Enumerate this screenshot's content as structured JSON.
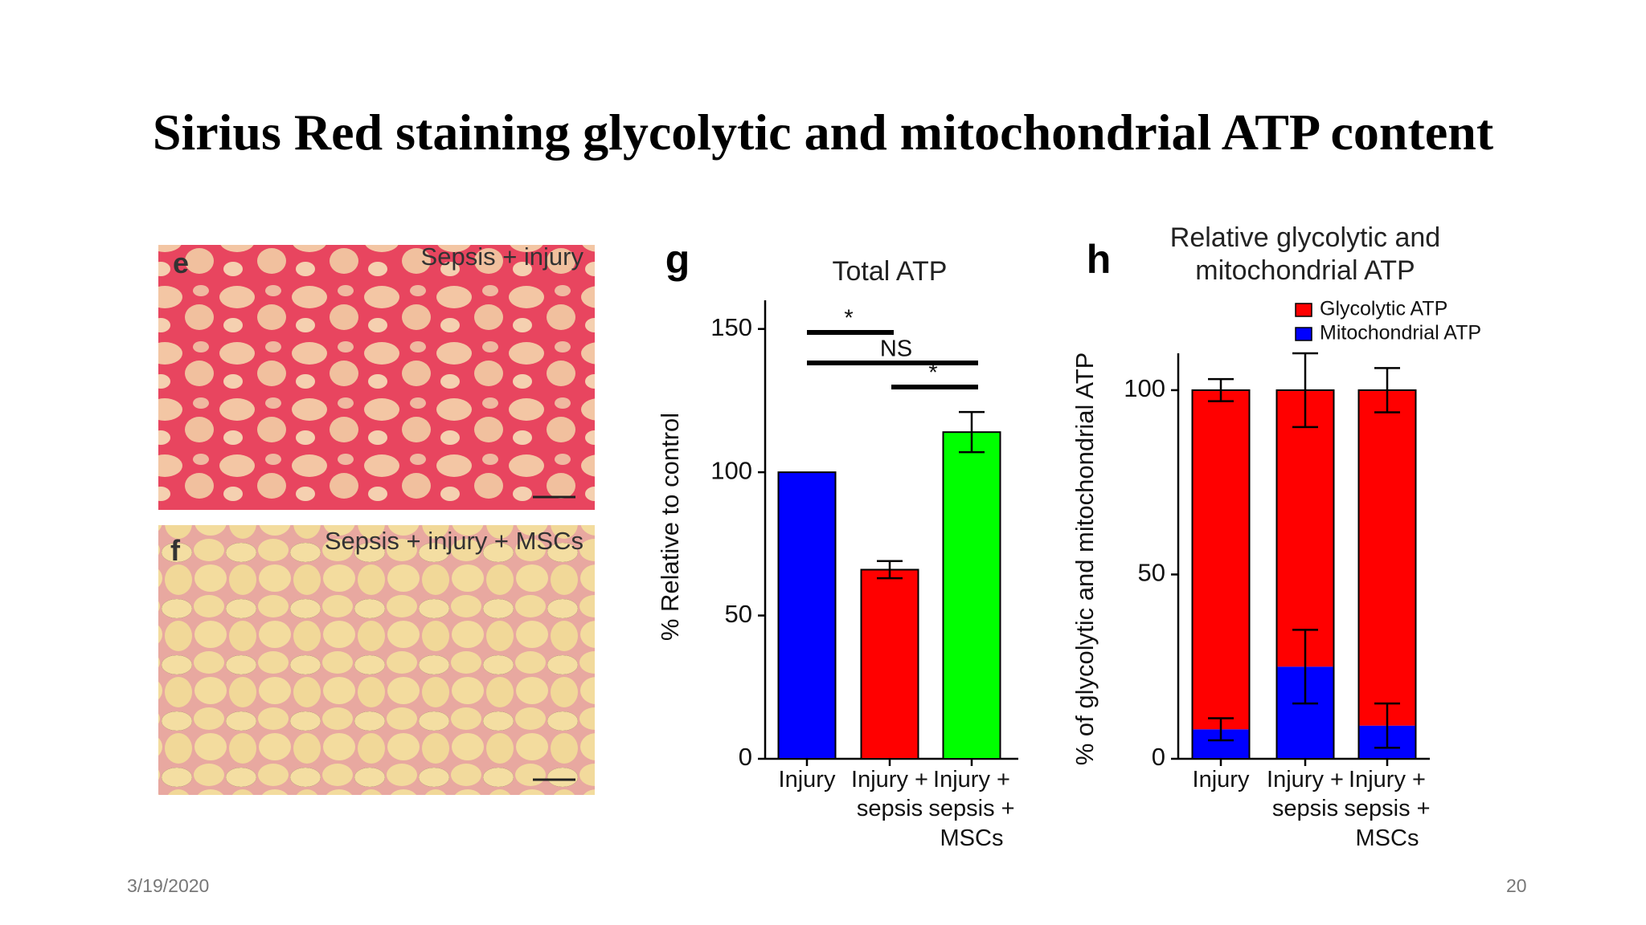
{
  "title": "Sirius Red staining glycolytic and mitochondrial ATP content",
  "images": [
    {
      "panel": "e",
      "caption": "Sepsis + injury"
    },
    {
      "panel": "f",
      "caption": "Sepsis + injury + MSCs"
    }
  ],
  "chart_data": [
    {
      "type": "bar",
      "panel": "g",
      "title": "Total ATP",
      "ylabel": "% Relative to control",
      "categories": [
        "Injury",
        "Injury + sepsis",
        "Injury + sepsis + MSCs"
      ],
      "values": [
        100,
        66,
        114
      ],
      "errors": [
        0,
        3,
        7
      ],
      "colors": [
        "#0000ff",
        "#ff0000",
        "#00ff00"
      ],
      "ylim": [
        0,
        160
      ],
      "yticks": [
        0,
        50,
        100,
        150
      ],
      "annotations": [
        "*",
        "NS",
        "*"
      ]
    },
    {
      "type": "stacked_bar",
      "panel": "h",
      "title": "Relative glycolytic and mitochondrial ATP",
      "ylabel": "% of glycolytic and mitochondrial ATP",
      "categories": [
        "Injury",
        "Injury + sepsis",
        "Injury + sepsis + MSCs"
      ],
      "series": [
        {
          "name": "Glycolytic ATP",
          "color": "#ff0000",
          "values": [
            92,
            75,
            91
          ],
          "errors": [
            3,
            10,
            6
          ]
        },
        {
          "name": "Mitochondrial ATP",
          "color": "#0000ff",
          "values": [
            8,
            25,
            9
          ],
          "errors": [
            3,
            10,
            6
          ]
        }
      ],
      "ylim": [
        0,
        110
      ],
      "yticks": [
        0,
        50,
        100
      ],
      "legend": "upper right"
    }
  ],
  "date": "3/19/2020",
  "page": 20
}
